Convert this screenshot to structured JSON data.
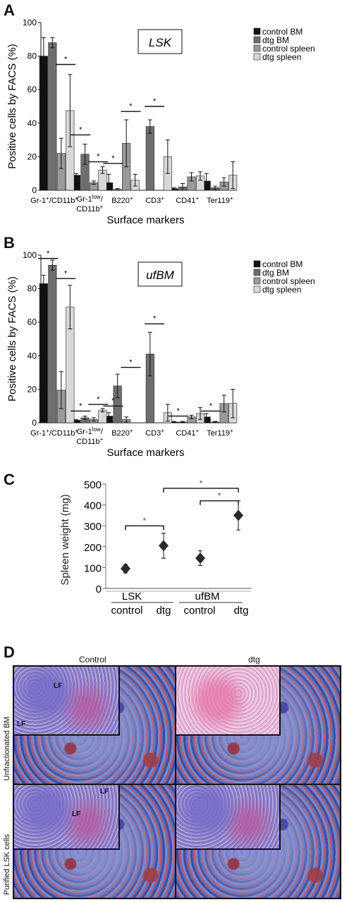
{
  "panels": {
    "A": {
      "letter": "A",
      "box_label": "LSK",
      "ylabel": "Positive cells by FACS (%)",
      "xlabel": "Surface markers"
    },
    "B": {
      "letter": "B",
      "box_label": "ufBM",
      "ylabel": "Positive cells by FACS (%)",
      "xlabel": "Surface markers"
    },
    "C": {
      "letter": "C",
      "ylabel": "Spleen weight (mg)",
      "group_labels": [
        "LSK",
        "ufBM"
      ],
      "point_labels": [
        "control",
        "dtg",
        "control",
        "dtg"
      ]
    },
    "D": {
      "letter": "D",
      "col_labels": [
        "Control",
        "dtg"
      ],
      "row_labels": [
        "Unfractionated BM",
        "Purified LSK cells"
      ],
      "lf_label": "LF"
    }
  },
  "chart_data": [
    {
      "type": "bar",
      "panel": "A",
      "categories": [
        "Gr-1+/CD11b+",
        "Gr-1low/CD11b+",
        "B220+",
        "CD3+",
        "CD41+",
        "Ter119+"
      ],
      "category_labels": [
        [
          "Gr-1",
          "+",
          "/CD11b",
          "+"
        ],
        [
          "Gr-1",
          "low",
          "/",
          "",
          "CD11b",
          "+"
        ],
        [
          "B220",
          "+"
        ],
        [
          "CD3",
          "+"
        ],
        [
          "CD41",
          "+"
        ],
        [
          "Ter119",
          "+"
        ]
      ],
      "series": [
        {
          "name": "control BM",
          "color": "#111111",
          "values": [
            80,
            9,
            4.5,
            0,
            1,
            5.5
          ],
          "errors": [
            11,
            1,
            5,
            0,
            0.5,
            4.5
          ]
        },
        {
          "name": "dtg BM",
          "color": "#6e6e6e",
          "values": [
            88,
            21.5,
            0.5,
            38,
            2,
            1.5
          ],
          "errors": [
            3,
            6,
            0.5,
            4,
            2,
            1
          ]
        },
        {
          "name": "control spleen",
          "color": "#9a9a9a",
          "values": [
            22,
            4.5,
            28,
            0,
            8,
            5
          ],
          "errors": [
            9,
            1,
            14,
            0,
            2.5,
            2.5
          ]
        },
        {
          "name": "dtg spleen",
          "color": "#d8d8d8",
          "values": [
            47.5,
            12,
            6,
            20,
            8.5,
            9
          ],
          "errors": [
            21.5,
            2,
            3.5,
            10,
            2.5,
            8
          ]
        }
      ],
      "ylim": [
        0,
        100
      ],
      "yticks": [
        0,
        20,
        40,
        60,
        80,
        100
      ],
      "significance": [
        {
          "group": 0,
          "from": 2,
          "to": 3,
          "y": 75,
          "label": "*"
        },
        {
          "group": 1,
          "from": 0,
          "to": 1,
          "y": 33,
          "label": "*"
        },
        {
          "group": 1,
          "from": 2,
          "to": 3,
          "y": 17,
          "label": "*"
        },
        {
          "group": 2,
          "from": 0,
          "to": 1,
          "y": 16,
          "label": "*"
        },
        {
          "group": 2,
          "from": 2,
          "to": 3,
          "y": 47,
          "label": "*"
        },
        {
          "group": 3,
          "from": 1,
          "to": 2,
          "y": 50,
          "label": "*"
        }
      ],
      "legend_position": "top-right"
    },
    {
      "type": "bar",
      "panel": "B",
      "categories": [
        "Gr-1+/CD11b+",
        "Gr-1low/CD11b+",
        "B220+",
        "CD3+",
        "CD41+",
        "Ter119+"
      ],
      "category_labels": [
        [
          "Gr-1",
          "+",
          "/CD11b",
          "+"
        ],
        [
          "Gr-1",
          "low",
          "/",
          "",
          "CD11b",
          "+"
        ],
        [
          "B220",
          "+"
        ],
        [
          "CD3",
          "+"
        ],
        [
          "CD41",
          "+"
        ],
        [
          "Ter119",
          "+"
        ]
      ],
      "series": [
        {
          "name": "control BM",
          "color": "#111111",
          "values": [
            83,
            1.5,
            4,
            0,
            0.5,
            3.5
          ],
          "errors": [
            5,
            0.5,
            2,
            0,
            0.3,
            2
          ]
        },
        {
          "name": "dtg BM",
          "color": "#6e6e6e",
          "values": [
            94,
            3,
            22,
            41,
            0.5,
            0.5
          ],
          "errors": [
            3,
            1,
            7,
            13,
            0.3,
            0.3
          ]
        },
        {
          "name": "control spleen",
          "color": "#9a9a9a",
          "values": [
            19.5,
            2,
            2,
            0,
            3.5,
            11.5
          ],
          "errors": [
            11,
            1,
            1.5,
            0,
            1,
            5
          ]
        },
        {
          "name": "dtg spleen",
          "color": "#d8d8d8",
          "values": [
            69,
            7.5,
            0,
            6,
            5.5,
            11.5
          ],
          "errors": [
            13,
            1,
            0,
            5,
            3.5,
            8.5
          ]
        }
      ],
      "ylim": [
        0,
        100
      ],
      "yticks": [
        0,
        20,
        40,
        60,
        80,
        100
      ],
      "significance": [
        {
          "group": 0,
          "from": 0,
          "to": 1,
          "y": 98,
          "label": "*"
        },
        {
          "group": 0,
          "from": 2,
          "to": 3,
          "y": 86,
          "label": "*"
        },
        {
          "group": 1,
          "from": 0,
          "to": 1,
          "y": 7,
          "label": "*"
        },
        {
          "group": 1,
          "from": 2,
          "to": 3,
          "y": 11,
          "label": "*"
        },
        {
          "group": 2,
          "from": 0,
          "to": 1,
          "y": 10,
          "label": "*"
        },
        {
          "group": 2,
          "from": 2,
          "to": 3,
          "y": 33,
          "label": "*"
        },
        {
          "group": 3,
          "from": 1,
          "to": 2,
          "y": 59,
          "label": "*"
        },
        {
          "group": 4,
          "from": 0,
          "to": 1,
          "y": 4,
          "label": "*"
        },
        {
          "group": 5,
          "from": 0,
          "to": 1,
          "y": 7,
          "label": "*"
        }
      ],
      "legend_position": "top-right"
    },
    {
      "type": "scatter",
      "panel": "C",
      "x": [
        "LSK control",
        "LSK dtg",
        "ufBM control",
        "ufBM dtg"
      ],
      "values": [
        95,
        205,
        145,
        350
      ],
      "errors": [
        20,
        60,
        35,
        70
      ],
      "ylim": [
        0,
        500
      ],
      "yticks": [
        0,
        100,
        200,
        300,
        400,
        500
      ],
      "significance": [
        {
          "from": 0,
          "to": 1,
          "y": 300,
          "label": "*"
        },
        {
          "from": 2,
          "to": 3,
          "y": 420,
          "label": "*"
        },
        {
          "from": 1,
          "to": 3,
          "y": 480,
          "label": "*"
        }
      ]
    }
  ]
}
